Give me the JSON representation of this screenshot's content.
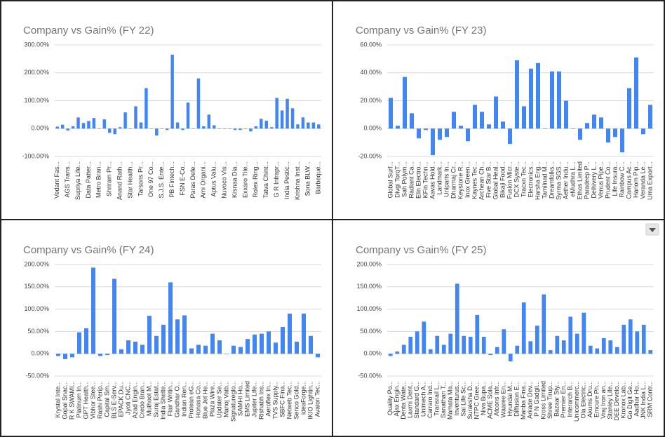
{
  "chart_data": [
    {
      "type": "bar",
      "title": "Company vs Gain% (FY 22)",
      "color": "#4285f4",
      "grid": true,
      "ylim": [
        -100,
        300
      ],
      "yticks": [
        {
          "value": -100,
          "label": "-100.00%"
        },
        {
          "value": 0,
          "label": "0.00%"
        },
        {
          "value": 100,
          "label": "100.00%"
        },
        {
          "value": 200,
          "label": "200.00%"
        },
        {
          "value": 300,
          "label": "300.00%"
        }
      ],
      "categories": [
        "Vedant Fas...",
        null,
        "AGS Trans...",
        null,
        "Supriya Life...",
        null,
        "Data Patter...",
        null,
        "Metro Bran...",
        null,
        "Shriram Pr...",
        null,
        "Anand Rath...",
        null,
        "Star Health...",
        null,
        "Tarsons Pr...",
        null,
        "One 97 Co...",
        null,
        "S.J.S. Ente...",
        null,
        "PB Fintech...",
        null,
        "FSN E-Co...",
        null,
        "Paras Defe...",
        null,
        "Ami Organi...",
        null,
        "Aptus Valu...",
        null,
        "Nuvoco Vis...",
        null,
        "Krsnaa Dia...",
        null,
        "Exxaro Tile...",
        null,
        "Rolex Ring...",
        null,
        "Tatva Chint...",
        null,
        "G R Infrapr...",
        null,
        "India Pestic...",
        null,
        "Krishna Inst...",
        null,
        "Sona BLW...",
        null,
        "Barbeque..."
      ],
      "values": [
        7,
        14,
        -7,
        8,
        40,
        20,
        27,
        38,
        0,
        33,
        -15,
        -20,
        5,
        58,
        0,
        80,
        22,
        145,
        0,
        -25,
        0,
        -5,
        265,
        22,
        -5,
        93,
        0,
        180,
        8,
        50,
        12,
        0,
        0,
        0,
        -5,
        -5,
        0,
        -10,
        8,
        35,
        28,
        5,
        110,
        65,
        107,
        73,
        15,
        40,
        22,
        22,
        15
      ]
    },
    {
      "type": "bar",
      "title": "Company vs Gain% (FY 23)",
      "color": "#4285f4",
      "grid": true,
      "ylim": [
        -20,
        60
      ],
      "yticks": [
        {
          "value": -20,
          "label": "-20.00%"
        },
        {
          "value": 0,
          "label": "0.00%"
        },
        {
          "value": 20,
          "label": "20.00%"
        },
        {
          "value": 40,
          "label": "40.00%"
        },
        {
          "value": 60,
          "label": "60.00%"
        }
      ],
      "categories": [
        "Global Surf...",
        "Divgi TorqT...",
        "Sah Polym...",
        "Radiant Ca...",
        "Elin Electro...",
        "KFin Techn...",
        "Aavas Hold...",
        "Landmark...",
        "Uniparts In...",
        "Dharmaj Cr...",
        "Keystone R...",
        "Inox Green...",
        "Kaynes Tec...",
        "Archean Ch...",
        "Five Star B...",
        "Global Heal...",
        "Bikaji Food...",
        "Fusion Micr...",
        "DCX Syste...",
        "Tracxn Tec...",
        "Electronics...",
        "Harsha Eng...",
        "Tamilnad M...",
        "Dreamfolks...",
        "Syrma SGS...",
        "Aether Indu...",
        "eMudhra L...",
        "Ethos Limited",
        "Paradeep P...",
        "Delhivery L...",
        "Venus Pipe...",
        "Prudent Co...",
        "Life Insura...",
        "Rainbow C...",
        "Campus Ac...",
        "Hariom Pip...",
        "Veranda Le...",
        "Uma Export..."
      ],
      "values": [
        22,
        2,
        37,
        11,
        -7,
        -1,
        -19,
        -8,
        -6,
        12,
        2,
        -9,
        17,
        12,
        3,
        23,
        5,
        -11,
        49,
        16,
        43,
        47,
        0,
        41,
        41,
        20,
        0,
        -8,
        4,
        10,
        8,
        -10,
        -6,
        -17,
        29,
        51,
        -4,
        17
      ]
    },
    {
      "type": "bar",
      "title": "Company vs Gain% (FY 24)",
      "color": "#4285f4",
      "grid": true,
      "ylim": [
        -50,
        200
      ],
      "yticks": [
        {
          "value": -50,
          "label": "-50.00%"
        },
        {
          "value": 0,
          "label": "0.00%"
        },
        {
          "value": 50,
          "label": "50.00%"
        },
        {
          "value": 100,
          "label": "100.00%"
        },
        {
          "value": 150,
          "label": "150.00%"
        },
        {
          "value": 200,
          "label": "200.00%"
        }
      ],
      "categories": [
        "Krystal Inte...",
        "Gopal Snac...",
        "R K SWAMI...",
        "Platinum In...",
        "GPT Health...",
        "Vibhor Stee...",
        "Rashi Perip...",
        "Capital Sm...",
        "BLS E-Serv...",
        "EPACK Du...",
        "Jyoti CNC...",
        "Azad Engin...",
        "Credo Bran...",
        "Muthoot M...",
        "Suraj Estat...",
        "India Shelte...",
        "Flair Writin...",
        "Gandhar O...",
        "Indian Ren...",
        "Protean eG...",
        "Honasa Co...",
        "Blue Jet He...",
        "Plaza Wire...",
        "Updater Se...",
        "Manoj Vaib...",
        "Signatureglo...",
        "SAMHI Ho...",
        "EMS Limited",
        "Jupiter Life...",
        "Rishabh Ins...",
        "Aeroflex In...",
        "TVS Supply...",
        "SBFC Fina...",
        "Netweb Tec...",
        "Senco Gold...",
        "ideaForge...",
        "IKIO Lightin...",
        "Avalon Tec..."
      ],
      "values": [
        -5,
        -12,
        -8,
        48,
        57,
        193,
        -5,
        -3,
        168,
        10,
        30,
        27,
        20,
        85,
        40,
        65,
        160,
        77,
        86,
        12,
        20,
        18,
        45,
        30,
        0,
        18,
        15,
        33,
        43,
        45,
        50,
        25,
        60,
        90,
        27,
        90,
        40,
        -8
      ]
    },
    {
      "type": "bar",
      "title": "Company vs Gain% (FY 25)",
      "color": "#4285f4",
      "grid": true,
      "ylim": [
        -50,
        200
      ],
      "yticks": [
        {
          "value": -50,
          "label": "-50.00%"
        },
        {
          "value": 0,
          "label": "0.00%"
        },
        {
          "value": 50,
          "label": "50.00%"
        },
        {
          "value": 100,
          "label": "100.00%"
        },
        {
          "value": 150,
          "label": "150.00%"
        },
        {
          "value": 200,
          "label": "200.00%"
        }
      ],
      "categories": [
        "Quality Po...",
        "Ajax Engin...",
        "Denta Wate...",
        "Laxmi Dent...",
        "Standard G...",
        "Unimech A...",
        "Carraro Ind...",
        "Transrail L...",
        "Sanathan T...",
        "Mamata Ma...",
        "Inventurus...",
        "Sai Life Sc...",
        "Suraksha D...",
        "NTPC Gree...",
        "Niva Bupa...",
        "ACME Sola...",
        "Afcons Infr...",
        "Waaree En...",
        "Hyundai M...",
        "Diffusion E...",
        "Manba Fina...",
        "Arkade Dev...",
        "P N Gadgil...",
        "Kross Limited",
        "Shree Tirup...",
        "Bazaar Sty...",
        "Premier En...",
        "Interarch B...",
        "Unicommerc...",
        "Ola Electric...",
        "Akums Dru...",
        "Emcure Ph...",
        "Vraj Iron an...",
        "Stanley Life...",
        "DEE Develo...",
        "Kronox Lab...",
        "Go Digit Ge...",
        "Aadhar Ho...",
        "JNK India L...",
        "SRM Contr..."
      ],
      "values": [
        -5,
        5,
        20,
        38,
        50,
        72,
        10,
        40,
        20,
        45,
        157,
        40,
        38,
        87,
        38,
        -3,
        15,
        55,
        -17,
        18,
        115,
        28,
        63,
        133,
        8,
        40,
        30,
        83,
        45,
        92,
        18,
        12,
        35,
        30,
        15,
        65,
        77,
        50,
        65,
        8
      ]
    }
  ]
}
